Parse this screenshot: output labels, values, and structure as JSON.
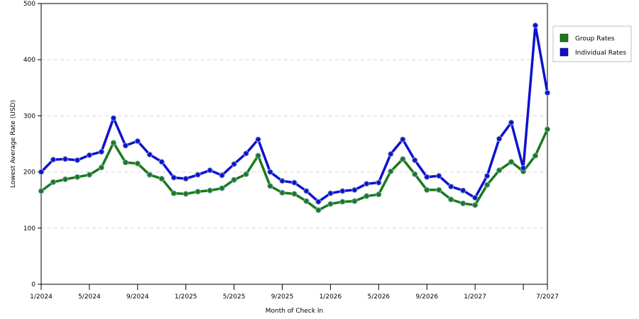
{
  "chart_data": {
    "type": "line",
    "xlabel": "Month of Check In",
    "ylabel": "Lowest Average Rate (USD)",
    "ylim": [
      0,
      500
    ],
    "yticks": [
      "0",
      "100",
      "200",
      "300",
      "400",
      "500"
    ],
    "x": [
      "1/2024",
      "2/2024",
      "3/2024",
      "4/2024",
      "5/2024",
      "6/2024",
      "7/2024",
      "8/2024",
      "9/2024",
      "10/2024",
      "11/2024",
      "12/2024",
      "1/2025",
      "2/2025",
      "3/2025",
      "4/2025",
      "5/2025",
      "6/2025",
      "7/2025",
      "8/2025",
      "9/2025",
      "10/2025",
      "11/2025",
      "12/2025",
      "1/2026",
      "2/2026",
      "3/2026",
      "4/2026",
      "5/2026",
      "6/2026",
      "7/2026",
      "8/2026",
      "9/2026",
      "10/2026",
      "11/2026",
      "12/2026",
      "1/2027",
      "2/2027",
      "3/2027",
      "4/2027",
      "5/2027",
      "6/2027",
      "7/2027"
    ],
    "xtick_labels": [
      {
        "index": 0,
        "label": "1/2024"
      },
      {
        "index": 4,
        "label": "5/2024"
      },
      {
        "index": 8,
        "label": "9/2024"
      },
      {
        "index": 12,
        "label": "1/2025"
      },
      {
        "index": 16,
        "label": "5/2025"
      },
      {
        "index": 20,
        "label": "9/2025"
      },
      {
        "index": 24,
        "label": "1/2026"
      },
      {
        "index": 28,
        "label": "5/2026"
      },
      {
        "index": 32,
        "label": "9/2026"
      },
      {
        "index": 36,
        "label": "1/2027"
      },
      {
        "index": 40,
        "label": ""
      },
      {
        "index": 42,
        "label": "7/2027"
      }
    ],
    "grid": true,
    "legend_position": "right",
    "series": [
      {
        "name": "Group Rates",
        "color": "#1a7a1a",
        "values": [
          166,
          182,
          187,
          191,
          195,
          208,
          252,
          217,
          215,
          195,
          188,
          162,
          161,
          165,
          167,
          171,
          186,
          196,
          229,
          175,
          163,
          161,
          148,
          132,
          143,
          147,
          148,
          157,
          160,
          201,
          223,
          196,
          168,
          168,
          151,
          144,
          141,
          177,
          203,
          218,
          201,
          229,
          276
        ]
      },
      {
        "name": "Individual Rates",
        "color": "#1010d0",
        "values": [
          200,
          222,
          223,
          221,
          230,
          236,
          296,
          247,
          255,
          231,
          218,
          190,
          188,
          195,
          203,
          194,
          214,
          233,
          258,
          200,
          184,
          181,
          166,
          147,
          162,
          166,
          168,
          179,
          181,
          232,
          258,
          221,
          191,
          193,
          174,
          167,
          154,
          193,
          259,
          288,
          207,
          461,
          341
        ]
      }
    ]
  }
}
